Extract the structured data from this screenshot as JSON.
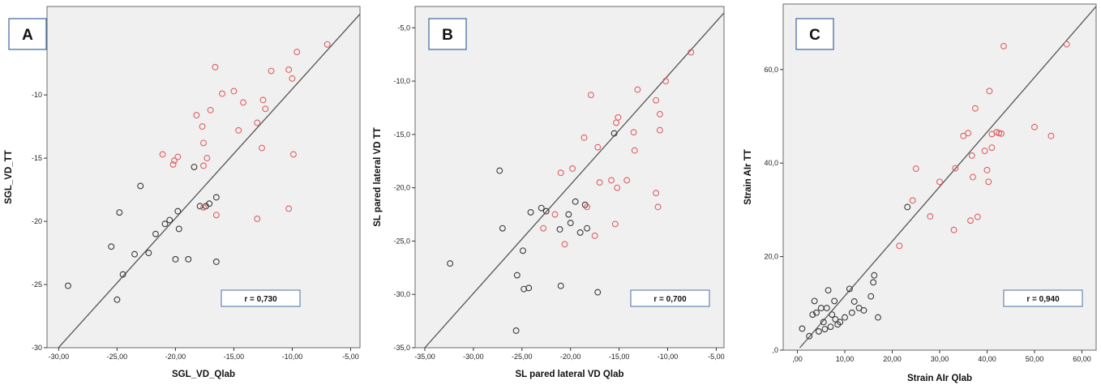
{
  "chart_data": [
    {
      "type": "scatter",
      "panel_label": "A",
      "xlabel": "SGL_VD_Qlab",
      "ylabel": "SGL_VD_TT",
      "xlim": [
        -31,
        -4.2
      ],
      "ylim": [
        -30,
        -3
      ],
      "xticks": [
        -30,
        -25,
        -20,
        -15,
        -10,
        -5
      ],
      "xtick_labels": [
        "-30,00",
        "-25,00",
        "-20,00",
        "-15,00",
        "-10,00",
        "-5,00"
      ],
      "yticks": [
        -30,
        -25,
        -20,
        -15,
        -10,
        -5
      ],
      "ytick_labels": [
        "-30",
        "-25",
        "-20",
        "-15",
        "-10",
        "-5"
      ],
      "annotation": "r = 0,730",
      "fit_line": [
        [
          -31,
          -31.0
        ],
        [
          -4.2,
          -3.6
        ]
      ],
      "colors": {
        "series_dark": "#3a3a3a",
        "series_red": "#e06060",
        "background": "#f0f0f0",
        "line": "#555555"
      },
      "grid": false,
      "series": [
        {
          "points": [
            [
              -29.2,
              -25.1
            ],
            [
              -25.5,
              -22.0
            ],
            [
              -25.0,
              -26.2
            ],
            [
              -24.8,
              -19.3
            ],
            [
              -24.5,
              -24.2
            ],
            [
              -23.5,
              -22.6
            ],
            [
              -23.0,
              -17.2
            ],
            [
              -22.3,
              -22.5
            ],
            [
              -21.7,
              -21.0
            ],
            [
              -20.9,
              -20.2
            ],
            [
              -20.5,
              -19.9
            ],
            [
              -20.0,
              -23.0
            ],
            [
              -19.8,
              -19.2
            ],
            [
              -19.7,
              -20.6
            ],
            [
              -18.9,
              -23.0
            ],
            [
              -18.4,
              -15.7
            ],
            [
              -17.9,
              -18.8
            ],
            [
              -17.4,
              -18.8
            ],
            [
              -17.1,
              -18.6
            ],
            [
              -16.5,
              -18.1
            ],
            [
              -16.5,
              -23.2
            ]
          ]
        },
        {
          "points": [
            [
              -7.0,
              -6.0
            ],
            [
              -9.6,
              -6.6
            ],
            [
              -10.3,
              -8.0
            ],
            [
              -10.0,
              -8.7
            ],
            [
              -11.8,
              -8.1
            ],
            [
              -12.5,
              -10.4
            ],
            [
              -12.3,
              -11.1
            ],
            [
              -13.0,
              -12.2
            ],
            [
              -12.6,
              -14.2
            ],
            [
              -14.2,
              -10.6
            ],
            [
              -15.0,
              -9.7
            ],
            [
              -14.6,
              -12.8
            ],
            [
              -16.6,
              -7.8
            ],
            [
              -16.0,
              -9.9
            ],
            [
              -17.0,
              -11.2
            ],
            [
              -17.7,
              -12.5
            ],
            [
              -18.2,
              -11.6
            ],
            [
              -17.6,
              -13.8
            ],
            [
              -17.3,
              -15.0
            ],
            [
              -17.6,
              -15.6
            ],
            [
              -19.8,
              -14.9
            ],
            [
              -20.1,
              -15.2
            ],
            [
              -20.2,
              -15.5
            ],
            [
              -21.1,
              -14.7
            ],
            [
              -16.5,
              -19.5
            ],
            [
              -17.6,
              -18.9
            ],
            [
              -13.0,
              -19.8
            ],
            [
              -10.3,
              -19.0
            ],
            [
              -9.9,
              -14.7
            ]
          ]
        }
      ]
    },
    {
      "type": "scatter",
      "panel_label": "B",
      "xlabel": "SL pared lateral VD Qlab",
      "ylabel": "SL pared lateral VD TT",
      "xlim": [
        -36,
        -4.2
      ],
      "ylim": [
        -35,
        -3
      ],
      "xticks": [
        -35,
        -30,
        -25,
        -20,
        -15,
        -10,
        -5
      ],
      "xtick_labels": [
        "-35,00",
        "-30,00",
        "-25,00",
        "-20,00",
        "-15,00",
        "-10,00",
        "-5,00"
      ],
      "yticks": [
        -35,
        -30,
        -25,
        -20,
        -15,
        -10,
        -5
      ],
      "ytick_labels": [
        "-35,0",
        "-30,0",
        "-25,0",
        "-20,0",
        "-15,0",
        "-10,0",
        "-5,0"
      ],
      "annotation": "r = 0,700",
      "fit_line": [
        [
          -35,
          -35.0
        ],
        [
          -4.2,
          -3.6
        ]
      ],
      "colors": {
        "series_dark": "#3a3a3a",
        "series_red": "#e06060",
        "background": "#f0f0f0",
        "line": "#555555"
      },
      "grid": false,
      "series": [
        {
          "points": [
            [
              -32.4,
              -27.1
            ],
            [
              -27.3,
              -18.4
            ],
            [
              -27.0,
              -23.8
            ],
            [
              -25.6,
              -33.4
            ],
            [
              -25.5,
              -28.2
            ],
            [
              -24.9,
              -25.9
            ],
            [
              -24.8,
              -29.5
            ],
            [
              -24.3,
              -29.4
            ],
            [
              -24.1,
              -22.3
            ],
            [
              -23.0,
              -21.9
            ],
            [
              -22.5,
              -22.2
            ],
            [
              -21.1,
              -23.9
            ],
            [
              -21.0,
              -29.2
            ],
            [
              -20.2,
              -22.5
            ],
            [
              -20.0,
              -23.3
            ],
            [
              -19.5,
              -21.3
            ],
            [
              -19.0,
              -24.2
            ],
            [
              -18.5,
              -21.6
            ],
            [
              -18.3,
              -23.8
            ],
            [
              -17.2,
              -29.8
            ],
            [
              -15.5,
              -14.9
            ]
          ]
        },
        {
          "points": [
            [
              -7.6,
              -7.3
            ],
            [
              -10.2,
              -10.0
            ],
            [
              -10.8,
              -13.1
            ],
            [
              -11.2,
              -11.8
            ],
            [
              -10.8,
              -14.6
            ],
            [
              -13.1,
              -10.8
            ],
            [
              -13.5,
              -14.8
            ],
            [
              -13.4,
              -16.5
            ],
            [
              -14.2,
              -19.3
            ],
            [
              -15.1,
              -13.4
            ],
            [
              -15.3,
              -13.9
            ],
            [
              -15.8,
              -19.3
            ],
            [
              -15.2,
              -20.0
            ],
            [
              -15.4,
              -23.4
            ],
            [
              -17.0,
              -19.5
            ],
            [
              -17.2,
              -16.2
            ],
            [
              -17.5,
              -24.5
            ],
            [
              -17.9,
              -11.3
            ],
            [
              -18.6,
              -15.3
            ],
            [
              -18.3,
              -21.8
            ],
            [
              -19.8,
              -18.2
            ],
            [
              -21.0,
              -18.6
            ],
            [
              -20.6,
              -25.3
            ],
            [
              -22.8,
              -23.8
            ],
            [
              -21.6,
              -22.5
            ],
            [
              -11.2,
              -20.5
            ],
            [
              -11.0,
              -21.8
            ]
          ]
        }
      ]
    },
    {
      "type": "scatter",
      "panel_label": "C",
      "xlabel": "Strain AIr Qlab",
      "ylabel": "Strain AIr TT",
      "xlim": [
        -3,
        63
      ],
      "ylim": [
        0,
        74
      ],
      "xticks": [
        0,
        10,
        20,
        30,
        40,
        50,
        60
      ],
      "xtick_labels": [
        ",00",
        "10,00",
        "20,00",
        "30,00",
        "40,00",
        "50,00",
        "60,00"
      ],
      "yticks": [
        0,
        20,
        40,
        60
      ],
      "ytick_labels": [
        ",0",
        "20,0",
        "40,0",
        "60,0"
      ],
      "annotation": "r = 0,940",
      "fit_line": [
        [
          0.5,
          0.5
        ],
        [
          63,
          73.5
        ]
      ],
      "colors": {
        "series_dark": "#3a3a3a",
        "series_red": "#e06060",
        "background": "#f0f0f0",
        "line": "#555555"
      },
      "grid": false,
      "series": [
        {
          "points": [
            [
              1.0,
              4.6
            ],
            [
              2.5,
              3.0
            ],
            [
              3.2,
              7.6
            ],
            [
              3.6,
              10.5
            ],
            [
              4.0,
              8.0
            ],
            [
              4.5,
              4.0
            ],
            [
              5.0,
              9.0
            ],
            [
              5.5,
              6.0
            ],
            [
              5.8,
              4.5
            ],
            [
              6.2,
              9.0
            ],
            [
              6.5,
              12.8
            ],
            [
              7.0,
              5.0
            ],
            [
              7.3,
              7.6
            ],
            [
              7.8,
              10.5
            ],
            [
              8.0,
              6.6
            ],
            [
              8.5,
              5.5
            ],
            [
              9.0,
              6.0
            ],
            [
              10.0,
              7.0
            ],
            [
              11.0,
              13.1
            ],
            [
              11.5,
              8.0
            ],
            [
              12.0,
              10.4
            ],
            [
              13.0,
              9.0
            ],
            [
              14.0,
              8.5
            ],
            [
              15.5,
              11.5
            ],
            [
              16.0,
              14.5
            ],
            [
              16.2,
              16.0
            ],
            [
              17.0,
              7.0
            ],
            [
              23.2,
              30.6
            ]
          ]
        },
        {
          "points": [
            [
              21.5,
              22.3
            ],
            [
              24.3,
              32.0
            ],
            [
              25.0,
              38.8
            ],
            [
              28.0,
              28.6
            ],
            [
              30.0,
              36.0
            ],
            [
              33.0,
              25.7
            ],
            [
              33.3,
              38.9
            ],
            [
              35.0,
              45.8
            ],
            [
              36.0,
              46.4
            ],
            [
              36.5,
              27.7
            ],
            [
              36.8,
              41.6
            ],
            [
              37.0,
              37.0
            ],
            [
              37.5,
              51.7
            ],
            [
              38.0,
              28.5
            ],
            [
              39.5,
              42.6
            ],
            [
              40.0,
              38.5
            ],
            [
              40.3,
              36.0
            ],
            [
              40.5,
              55.4
            ],
            [
              41.0,
              43.3
            ],
            [
              41.0,
              46.2
            ],
            [
              42.0,
              46.6
            ],
            [
              42.5,
              46.4
            ],
            [
              43.0,
              46.3
            ],
            [
              43.5,
              65.0
            ],
            [
              50.0,
              47.7
            ],
            [
              53.5,
              45.8
            ],
            [
              56.8,
              65.4
            ]
          ]
        }
      ]
    }
  ]
}
